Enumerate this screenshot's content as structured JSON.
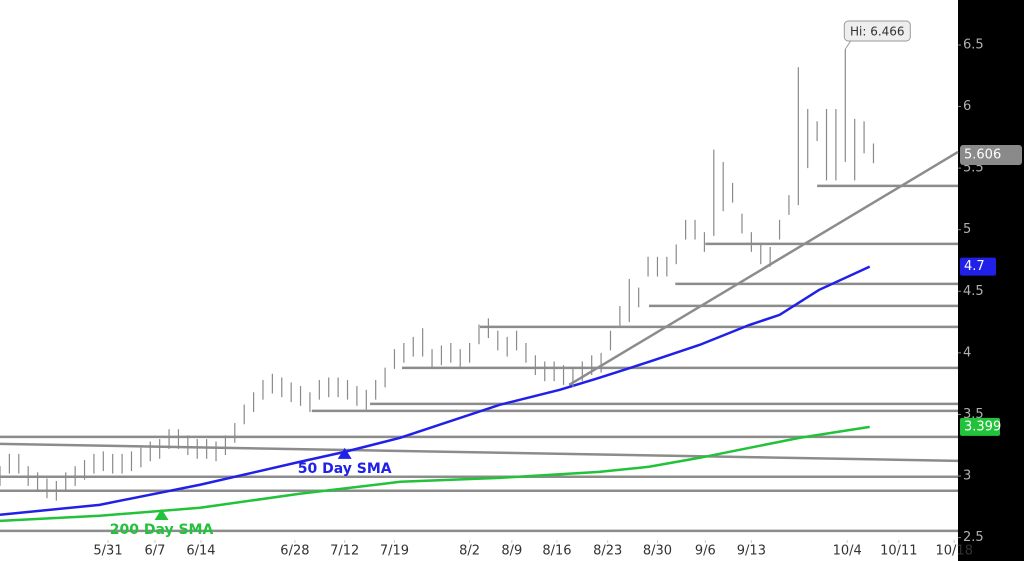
{
  "chart_data": {
    "type": "ohlc",
    "bar_color": "#8a8a8a",
    "x": [
      0,
      1,
      2,
      3,
      4,
      5,
      6,
      7,
      8,
      9,
      10,
      11,
      12,
      13,
      14,
      15,
      16,
      17,
      18,
      19,
      20,
      21,
      22,
      23,
      24,
      25,
      26,
      27,
      28,
      29,
      30,
      31,
      32,
      33,
      34,
      35,
      36,
      37,
      38,
      39,
      40,
      41,
      42,
      43,
      44,
      45,
      46,
      47,
      48,
      49,
      50,
      51,
      52,
      53,
      54,
      55,
      56,
      57,
      58,
      59,
      60,
      61,
      62,
      63,
      64,
      65,
      66,
      67,
      68,
      69,
      70,
      71,
      72,
      73,
      74,
      75,
      76,
      77,
      78,
      79,
      80,
      81,
      82,
      83,
      84,
      85,
      86,
      87,
      88,
      89,
      90,
      91,
      92,
      93
    ],
    "high": [
      3.08,
      3.18,
      3.18,
      3.08,
      3.03,
      2.98,
      2.96,
      3.03,
      3.08,
      3.13,
      3.18,
      3.2,
      3.18,
      3.18,
      3.2,
      3.23,
      3.28,
      3.3,
      3.38,
      3.38,
      3.33,
      3.3,
      3.3,
      3.28,
      3.33,
      3.43,
      3.58,
      3.68,
      3.78,
      3.83,
      3.8,
      3.76,
      3.73,
      3.68,
      3.78,
      3.8,
      3.8,
      3.78,
      3.73,
      3.7,
      3.78,
      3.88,
      4.03,
      4.08,
      4.13,
      4.2,
      4.03,
      4.06,
      4.08,
      4.03,
      4.08,
      4.23,
      4.28,
      4.18,
      4.13,
      4.18,
      4.08,
      3.98,
      3.93,
      3.93,
      3.9,
      3.88,
      3.93,
      3.98,
      4.0,
      4.18,
      4.38,
      4.6,
      4.53,
      4.78,
      4.78,
      4.78,
      4.88,
      5.08,
      5.08,
      4.98,
      5.65,
      5.55,
      5.38,
      5.13,
      4.98,
      4.88,
      4.86,
      5.08,
      5.28,
      6.32,
      5.98,
      5.88,
      5.98,
      5.98,
      6.466,
      5.9,
      5.88,
      5.7
    ],
    "low": [
      2.92,
      3.02,
      3.02,
      2.92,
      2.87,
      2.82,
      2.8,
      2.87,
      2.92,
      2.97,
      3.02,
      3.04,
      3.02,
      3.02,
      3.04,
      3.07,
      3.12,
      3.14,
      3.22,
      3.22,
      3.17,
      3.14,
      3.14,
      3.12,
      3.17,
      3.27,
      3.42,
      3.52,
      3.62,
      3.67,
      3.64,
      3.6,
      3.57,
      3.52,
      3.62,
      3.64,
      3.64,
      3.62,
      3.57,
      3.54,
      3.62,
      3.72,
      3.87,
      3.92,
      3.97,
      3.97,
      3.87,
      3.9,
      3.92,
      3.87,
      3.92,
      4.07,
      4.12,
      4.02,
      3.97,
      4.02,
      3.92,
      3.82,
      3.77,
      3.77,
      3.74,
      3.72,
      3.77,
      3.82,
      3.84,
      4.02,
      4.22,
      4.25,
      4.37,
      4.62,
      4.62,
      4.62,
      4.72,
      4.92,
      4.92,
      4.82,
      4.95,
      5.15,
      5.22,
      4.97,
      4.82,
      4.72,
      4.7,
      4.92,
      5.12,
      5.2,
      5.5,
      5.72,
      5.4,
      5.4,
      5.55,
      5.4,
      5.62,
      5.54
    ],
    "xlim": [
      0,
      102
    ],
    "xticks": [
      {
        "value": 11.5,
        "label": "5/31"
      },
      {
        "value": 16.5,
        "label": "6/7"
      },
      {
        "value": 21.4,
        "label": "6/14"
      },
      {
        "value": 31.4,
        "label": "6/28"
      },
      {
        "value": 36.7,
        "label": "7/12"
      },
      {
        "value": 42,
        "label": "7/19"
      },
      {
        "value": 50,
        "label": "8/2"
      },
      {
        "value": 54.5,
        "label": "8/9"
      },
      {
        "value": 59.3,
        "label": "8/16"
      },
      {
        "value": 64.7,
        "label": "8/23"
      },
      {
        "value": 70,
        "label": "8/30"
      },
      {
        "value": 75.1,
        "label": "9/6"
      },
      {
        "value": 80,
        "label": "9/13"
      },
      {
        "value": 90.2,
        "label": "10/4"
      },
      {
        "value": 95.7,
        "label": "10/11"
      },
      {
        "value": 101.6,
        "label": "10/18"
      }
    ],
    "ylim": [
      2.31,
      6.865
    ],
    "yticks": [
      2.5,
      3,
      3.5,
      4,
      4.5,
      5,
      5.5,
      6,
      6.5
    ],
    "hi_label": "Hi: 6.466",
    "hi_value": 6.466,
    "hi_x": 90,
    "last_price": 5.606,
    "last_color": "#8a8a8a",
    "lines": [
      {
        "name": "50 Day SMA",
        "color": "#2020e8",
        "x": [
          0,
          10.6,
          21.3,
          31.9,
          36.7,
          42.6,
          53.2,
          59.6,
          63.8,
          69.1,
          74.5,
          79.8,
          83,
          87.2,
          92.6
        ],
        "values": [
          2.685,
          2.766,
          2.929,
          3.115,
          3.196,
          3.31,
          3.578,
          3.7,
          3.797,
          3.927,
          4.065,
          4.227,
          4.308,
          4.511,
          4.7
        ],
        "tag": 4.7,
        "marker_x": 36.7,
        "marker_value": 3.196
      },
      {
        "name": "200 Day SMA",
        "color": "#22c23a",
        "x": [
          0,
          10.6,
          21.3,
          31.9,
          42.6,
          53.2,
          63.8,
          69.1,
          74.5,
          79.8,
          85.1,
          92.6
        ],
        "values": [
          2.636,
          2.677,
          2.742,
          2.856,
          2.953,
          2.985,
          3.034,
          3.075,
          3.148,
          3.229,
          3.31,
          3.399
        ],
        "tag": 3.399,
        "marker_x": 17.2,
        "marker_value": 2.7
      }
    ],
    "levels": [
      {
        "from": 87,
        "value": 5.356
      },
      {
        "from": 75.1,
        "value": 4.885
      },
      {
        "from": 71.9,
        "value": 4.56
      },
      {
        "from": 69.1,
        "value": 4.381
      },
      {
        "from": 51.1,
        "value": 4.211
      },
      {
        "from": 42.8,
        "value": 3.878
      },
      {
        "from": 39.4,
        "value": 3.586
      },
      {
        "from": 33.2,
        "value": 3.529
      },
      {
        "from": 0,
        "value": 3.318
      },
      {
        "from": 0,
        "value": 2.994
      },
      {
        "from": 0,
        "value": 2.88
      },
      {
        "from": 0,
        "value": 2.555
      }
    ],
    "trendlines": [
      {
        "x": [
          0,
          102
        ],
        "values": [
          3.261,
          3.123
        ]
      },
      {
        "x": [
          60.6,
          102
        ],
        "values": [
          3.74,
          5.631
        ]
      }
    ],
    "level_color": "#8c8c8c"
  }
}
